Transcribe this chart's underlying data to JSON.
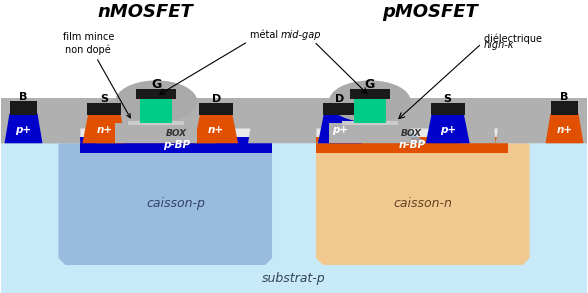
{
  "title_left": "nMOSFET",
  "title_right": "pMOSFET",
  "subtitle": "substrat-p",
  "label_film": "film mince\nnon dopé",
  "label_metal": "métal mid-gap",
  "label_metal_italic": "mid-gap",
  "label_dielec": "diélectrique high-κ",
  "label_dielec_italic": "high-κ",
  "colors": {
    "bg_white": "#ffffff",
    "light_blue": "#c8eaf8",
    "caisson_p_fill": "#99bbdd",
    "caisson_n_fill": "#f0c890",
    "gray_si": "#b0b0b0",
    "box_white": "#e8e8e8",
    "bp_p_blue": "#0000cc",
    "bp_n_orange": "#e05000",
    "n_plus_orange": "#e05000",
    "p_plus_blue": "#0000cc",
    "gate_green": "#00cc88",
    "metal_black": "#1a1a1a",
    "text_black": "#000000",
    "text_white": "#ffffff",
    "gate_dome_gray": "#aaaaaa",
    "channel_n_glow": "#ddaa44",
    "channel_p_glow": "#88bbdd"
  }
}
